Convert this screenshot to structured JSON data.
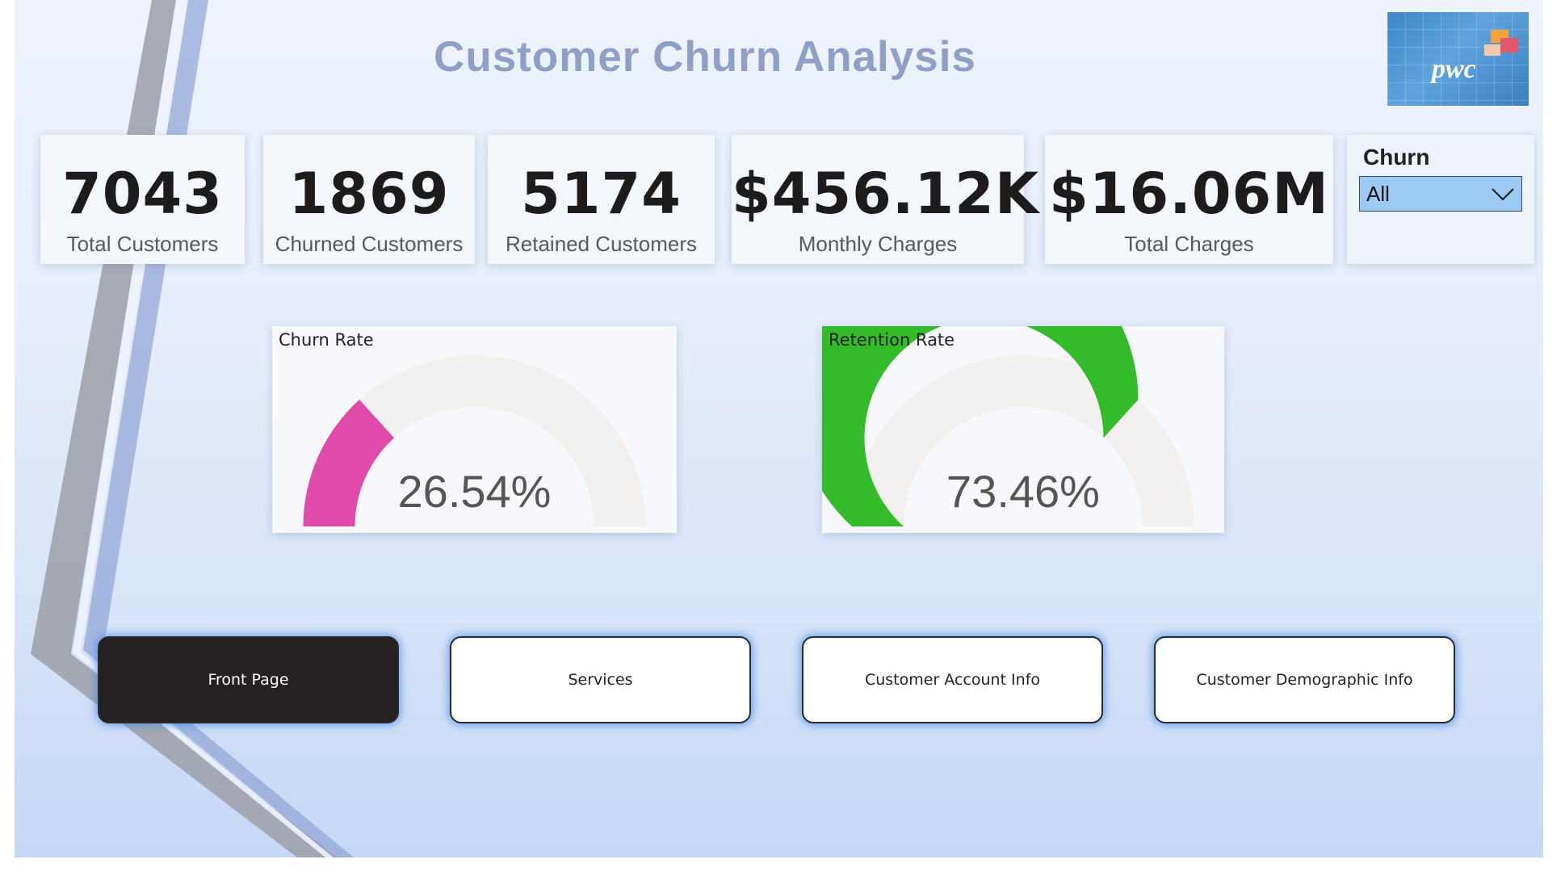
{
  "header": {
    "title": "Customer Churn Analysis",
    "logo_text": "pwc"
  },
  "kpis": [
    {
      "value": "7043",
      "label": "Total Customers"
    },
    {
      "value": "1869",
      "label": "Churned Customers"
    },
    {
      "value": "5174",
      "label": "Retained Customers"
    },
    {
      "value": "$456.12K",
      "label": "Monthly Charges"
    },
    {
      "value": "$16.06M",
      "label": "Total Charges"
    }
  ],
  "slicer": {
    "title": "Churn",
    "selected": "All",
    "icon": "chevron-down-icon"
  },
  "gauges": [
    {
      "title": "Churn Rate",
      "value_text": "26.54%",
      "value": 0.2654,
      "color": "#e04aaa",
      "track_color": "#f2f1f0"
    },
    {
      "title": "Retention Rate",
      "value_text": "73.46%",
      "value": 0.7346,
      "color": "#34bb2a",
      "track_color": "#f2f1f0"
    }
  ],
  "nav": [
    {
      "label": "Front Page",
      "active": true
    },
    {
      "label": "Services",
      "active": false
    },
    {
      "label": "Customer Account Info",
      "active": false
    },
    {
      "label": "Customer Demographic Info",
      "active": false
    }
  ],
  "colors": {
    "title": "#8e9fc8",
    "active_button": "#252122",
    "button_glow": "#468ce6"
  }
}
